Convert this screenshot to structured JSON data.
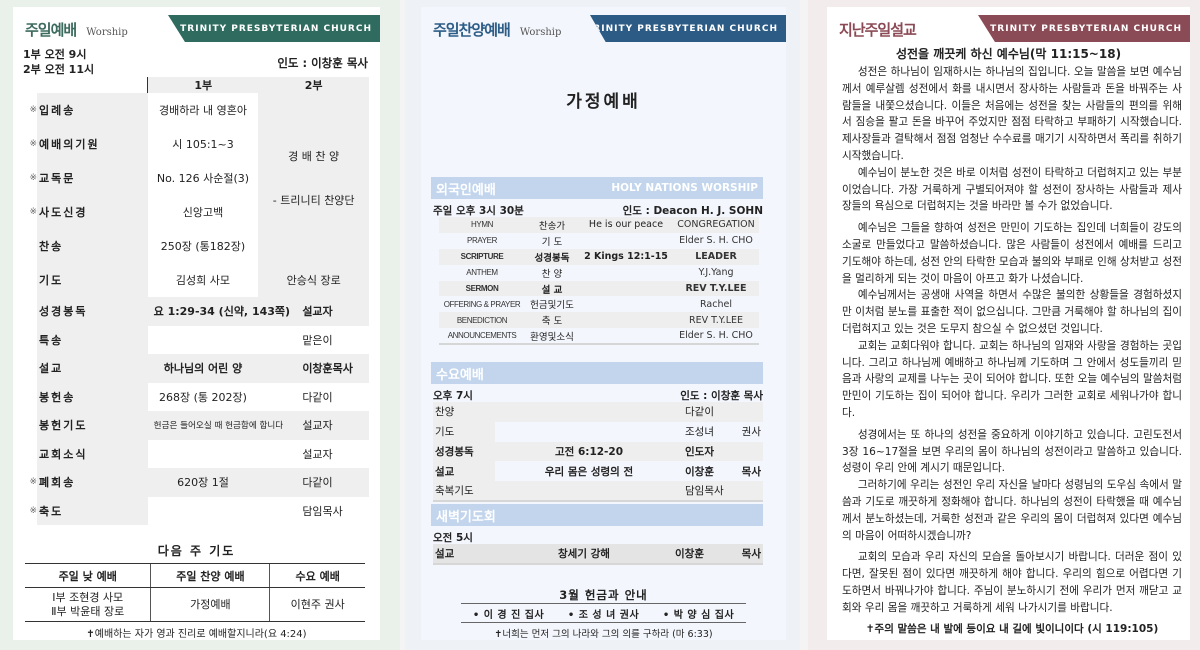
{
  "colors": {
    "green": "#2f6c5f",
    "blue": "#2c5c86",
    "maroon": "#8a4b56",
    "section": "#c2d5ec"
  },
  "church_name": "TRINITY PRESBYTERIAN CHURCH",
  "sunday": {
    "title": "주일예배",
    "subtitle": "Worship",
    "time1": "1부 오전  9시",
    "time2": "2부 오전 11시",
    "leader": "인도 : 이창훈 목사",
    "col1": "1부",
    "col2": "2부",
    "praise": "경 배 찬 양",
    "praise_by": "- 트리니티 찬양단",
    "rows": [
      {
        "mark": "※",
        "label": "입례송",
        "v1": "경배하라 내 영혼아"
      },
      {
        "mark": "※",
        "label": "예배의기원",
        "v1": "시 105:1~3"
      },
      {
        "mark": "※",
        "label": "교독문",
        "v1": "No. 126   사순절(3)"
      },
      {
        "mark": "※",
        "label": "사도신경",
        "v1": "신앙고백"
      },
      {
        "mark": "",
        "label": "찬송",
        "v1": "250장 (통182장)"
      },
      {
        "mark": "",
        "label": "기도",
        "v1": "김성희 사모",
        "v2": "안승식 장로"
      },
      {
        "mark": "",
        "label": "성경봉독",
        "v1": "요 1:29-34 (신약, 143쪽)",
        "v2": "설교자",
        "bold": true
      },
      {
        "mark": "",
        "label": "특송",
        "v1": "",
        "v2": "맡은이"
      },
      {
        "mark": "",
        "label": "설교",
        "v1": "하나님의 어린 양",
        "v2": "이창훈목사",
        "bold": true
      },
      {
        "mark": "",
        "label": "봉헌송",
        "v1": "268장 (통 202장)",
        "v2": "다같이"
      },
      {
        "mark": "",
        "label": "봉헌기도",
        "v1": "헌금은 들어오실 때 헌금함에 합니다",
        "v2": "설교자"
      },
      {
        "mark": "",
        "label": "교회소식",
        "v1": "",
        "v2": "설교자"
      },
      {
        "mark": "※",
        "label": "폐회송",
        "v1": "620장 1절",
        "v2": "다같이"
      },
      {
        "mark": "※",
        "label": "축도",
        "v1": "",
        "v2": "담임목사"
      }
    ],
    "next_title": "다음 주 기도",
    "next_headers": [
      "주일 낮 예배",
      "주일 찬양 예배",
      "수요 예배"
    ],
    "next_first_line1": "Ⅰ부 조현경 사모",
    "next_first_line2": "Ⅱ부 박윤태 장로",
    "next_second": "가정예배",
    "next_third": "이현주 권사",
    "verse": "✝예배하는 자가 영과 진리로 예배할지니라(요 4:24)"
  },
  "praise_service": {
    "title": "주일찬양예배",
    "subtitle": "Worship",
    "main": "가정예배",
    "foreign": {
      "title": "외국인예배",
      "title_en": "HOLY NATIONS WORSHIP",
      "time": "주일 오후 3시 30분",
      "leader": "인도 : Deacon H. J. SOHN",
      "rows": [
        {
          "en": "HYMN",
          "ko": "찬송가",
          "v": "He is our peace",
          "r": "CONGREGATION"
        },
        {
          "en": "PRAYER",
          "ko": "기 도",
          "v": "",
          "r": "Elder S. H. CHO"
        },
        {
          "en": "SCRIPTURE",
          "ko": "성경봉독",
          "v": "2 Kings 12:1-15",
          "r": "LEADER",
          "bold": true
        },
        {
          "en": "ANTHEM",
          "ko": "찬 양",
          "v": "",
          "r": "Y.J.Yang"
        },
        {
          "en": "SERMON",
          "ko": "설 교",
          "v": "",
          "r": "REV T.Y.LEE",
          "bold": true
        },
        {
          "en": "OFFERING & PRAYER",
          "ko": "헌금및기도",
          "v": "",
          "r": "Rachel"
        },
        {
          "en": "BENEDICTION",
          "ko": "축 도",
          "v": "",
          "r": "REV T.Y.LEE"
        },
        {
          "en": "ANNOUNCEMENTS",
          "ko": "환영및소식",
          "v": "",
          "r": "Elder S. H. CHO"
        }
      ]
    },
    "wednesday": {
      "title": "수요예배",
      "time": "오후 7시",
      "leader": "인도 : 이창훈 목사",
      "rows": [
        {
          "label": "찬양",
          "v": "",
          "r": "다같이"
        },
        {
          "label": "기도",
          "v": "",
          "r": "조성녀 권사"
        },
        {
          "label": "성경봉독",
          "v": "고전 6:12-20",
          "r": "인도자",
          "bold": true
        },
        {
          "label": "설교",
          "v": "우리 몸은 성령의 전",
          "r": "이창훈 목사",
          "bold": true
        },
        {
          "label": "축복기도",
          "v": "",
          "r": "담임목사"
        }
      ]
    },
    "dawn": {
      "title": "새벽기도회",
      "time": "오전 5시",
      "label": "설교",
      "v": "창세기 강해",
      "r": "이창훈 목사"
    },
    "offering_title": "3월  헌금과  안내",
    "offering_people": [
      "• 이 경 진 집사",
      "• 조 성 녀 권사",
      "• 박 양 심 집사"
    ],
    "verse": "✝너희는 먼저 그의 나라와 그의 의를 구하라 (마 6:33)"
  },
  "sermon": {
    "title": "지난주일설교",
    "heading": "성전을 깨끗케 하신 예수님(막 11:15~18)",
    "paragraphs": [
      "성전은 하나님이 임재하시는 하나님의 집입니다. 오늘 말씀을 보면 예수님께서 예루살렘 성전에서 화를 내시면서 장사하는 사람들과 돈을 바꿔주는 사람들을 내쫓으셨습니다. 이들은 처음에는 성전을 찾는 사람들의 편의를 위해서 짐승을 팔고 돈을 바꾸어 주었지만 점점 타락하고 부패하기 시작했습니다. 제사장들과 결탁해서 점점 엄청난 수수료를 매기기 시작하면서 폭리를 취하기 시작했습니다.",
      "예수님이 분노한 것은 바로 이처럼 성전이 타락하고 더럽혀지고 있는 부분이었습니다. 가장 거룩하게 구별되어져야 할 성전이 장사하는 사람들과 제사장들의 욕심으로 더럽혀지는 것을 바라만 볼 수가 없었습니다.",
      "예수님은 그들을 향하여 성전은 만민이 기도하는 집인데 너희들이 강도의 소굴로 만들었다고 말씀하셨습니다. 많은 사람들이 성전에서 예배를 드리고 기도해야 하는데, 성전 안의 타락한 모습과  불의와 부패로 인해 상처받고 성전을 멀리하게 되는 것이 마음이 아프고 화가 나셨습니다.",
      "예수님께서는 공생애 사역을 하면서 수많은 불의한 상황들을 경험하셨지만 이처럼 분노를 표출한 적이 없으십니다. 그만큼 거룩해야 할 하나님의 집이 더럽혀지고 있는 것은 도무지 참으실 수 없으셨던 것입니다.",
      "교회는 교회다워야 합니다. 교회는 하나님의 임재와 사랑을 경험하는 곳입니다. 그리고 하나님께 예배하고 하나님께 기도하며 그 안에서 성도들끼리 믿음과 사랑의 교제를 나누는 곳이 되어야 합니다. 또한 오늘 예수님의 말씀처럼 만민이 기도하는 집이 되어야 합니다. 우리가 그러한 교회로 세워나가야 합니다.",
      "성경에서는 또 하나의 성전을 중요하게 이야기하고 있습니다. 고린도전서 3장 16~17절을 보면 우리의 몸이 하나님의 성전이라고 말씀하고 있습니다. 성령이 우리 안에 계시기 때문입니다.",
      "그러하기에 우리는 성전인 우리 자신을 날마다 성령님의 도우심 속에서 말씀과 기도로 깨끗하게 정화해야 합니다. 하나님의 성전이 타락했을 때 예수님께서 분노하셨는데, 거룩한 성전과 같은 우리의 몸이 더럽혀져 있다면 예수님의 마음이 어떠하시겠습니까?",
      "교회의 모습과 우리 자신의 모습을 돌아보시기 바랍니다. 더러운 점이 있다면, 잘못된 점이 있다면 깨끗하게 해야 합니다. 우리의 힘으로 어렵다면 기도하면서 바꿔나가야 합니다. 주님이 분노하시기 전에  우리가 먼저 깨닫고 교회와 우리 몸을 깨끗하고 거룩하게 세워 나가시기를 바랍니다."
    ],
    "verse": "✝주의 말씀은 내 발에 등이요 내 길에 빛이니이다 (시 119:105)"
  }
}
